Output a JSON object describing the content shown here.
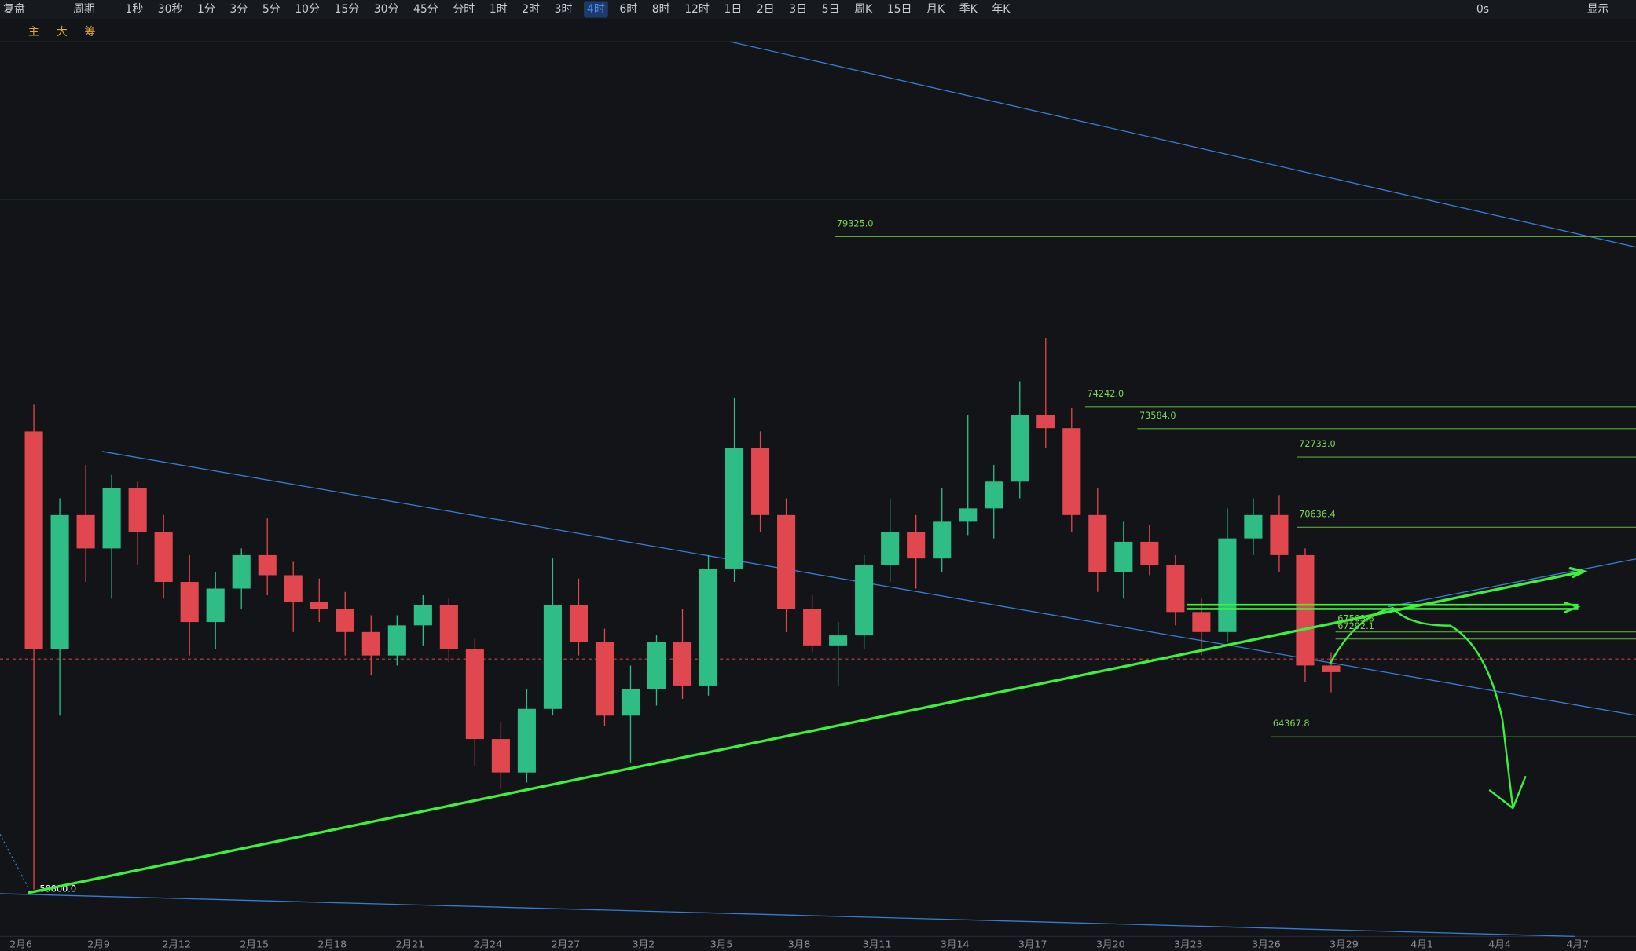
{
  "toolbar": {
    "replay": "复盘",
    "period": "周期",
    "timeframes": [
      "1秒",
      "30秒",
      "1分",
      "3分",
      "5分",
      "10分",
      "15分",
      "30分",
      "45分",
      "分时",
      "1时",
      "2时",
      "3时",
      "4时",
      "6时",
      "8时",
      "12时",
      "1日",
      "2日",
      "3日",
      "5日",
      "周K",
      "15日",
      "月K",
      "季K",
      "年K"
    ],
    "active": "4时",
    "right": [
      "0s",
      "显示"
    ],
    "tools": [
      "主",
      "大",
      "筹"
    ]
  },
  "x_axis": [
    "2月6",
    "2月9",
    "2月12",
    "2月15",
    "2月18",
    "2月21",
    "2月24",
    "2月27",
    "3月2",
    "3月5",
    "3月8",
    "3月11",
    "3月14",
    "3月17",
    "3月20",
    "3月23",
    "3月26",
    "3月29",
    "4月1",
    "4月4",
    "4月7"
  ],
  "price_levels": [
    "79325.0",
    "74242.0",
    "73584.0",
    "72733.0",
    "70636.4",
    "67503.8",
    "67292.1",
    "64367.8",
    "59800.0"
  ],
  "candles": [
    [
      73500,
      74300,
      59800,
      67000
    ],
    [
      67000,
      71500,
      65000,
      71000
    ],
    [
      71000,
      72500,
      69000,
      70000
    ],
    [
      70000,
      72200,
      68500,
      71800
    ],
    [
      71800,
      72000,
      69500,
      70500
    ],
    [
      70500,
      71000,
      68500,
      69000
    ],
    [
      69000,
      69800,
      66800,
      67800
    ],
    [
      67800,
      69300,
      67000,
      68800
    ],
    [
      68800,
      70000,
      68200,
      69800
    ],
    [
      69800,
      70900,
      68600,
      69200
    ],
    [
      69200,
      69600,
      67500,
      68400
    ],
    [
      68400,
      69100,
      67800,
      68200
    ],
    [
      68200,
      68700,
      66800,
      67500
    ],
    [
      67500,
      68000,
      66200,
      66800
    ],
    [
      66800,
      68000,
      66500,
      67700
    ],
    [
      67700,
      68600,
      67100,
      68300
    ],
    [
      68300,
      68500,
      66600,
      67000
    ],
    [
      67000,
      67300,
      63500,
      64300
    ],
    [
      64300,
      64800,
      62800,
      63300
    ],
    [
      63300,
      65800,
      63000,
      65200
    ],
    [
      65200,
      69700,
      65000,
      68300
    ],
    [
      68300,
      69100,
      66800,
      67200
    ],
    [
      67200,
      67600,
      64700,
      65000
    ],
    [
      65000,
      66500,
      63600,
      65800
    ],
    [
      65800,
      67400,
      65300,
      67200
    ],
    [
      67200,
      68200,
      65500,
      65900
    ],
    [
      65900,
      69800,
      65600,
      69400
    ],
    [
      69400,
      74500,
      69000,
      73000
    ],
    [
      73000,
      73500,
      70500,
      71000
    ],
    [
      71000,
      71500,
      67500,
      68200
    ],
    [
      68200,
      68600,
      66900,
      67100
    ],
    [
      67100,
      67800,
      65900,
      67400
    ],
    [
      67400,
      69800,
      67000,
      69500
    ],
    [
      69500,
      71500,
      69000,
      70500
    ],
    [
      70500,
      71000,
      68800,
      69700
    ],
    [
      69700,
      71800,
      69300,
      70800
    ],
    [
      70800,
      74000,
      70400,
      71200
    ],
    [
      71200,
      72500,
      70300,
      72000
    ],
    [
      72000,
      75000,
      71500,
      74000
    ],
    [
      74000,
      76300,
      73000,
      73600
    ],
    [
      73600,
      74200,
      70500,
      71000
    ],
    [
      71000,
      71800,
      68700,
      69300
    ],
    [
      69300,
      70800,
      68500,
      70200
    ],
    [
      70200,
      70700,
      69200,
      69500
    ],
    [
      69500,
      69800,
      67700,
      68100
    ],
    [
      68100,
      68500,
      66800,
      67500
    ],
    [
      67500,
      71200,
      67200,
      70300
    ],
    [
      70300,
      71500,
      69800,
      71000
    ],
    [
      71000,
      71600,
      69300,
      69800
    ],
    [
      69800,
      70000,
      66000,
      66500
    ],
    [
      66500,
      66900,
      65700,
      66300
    ]
  ]
}
